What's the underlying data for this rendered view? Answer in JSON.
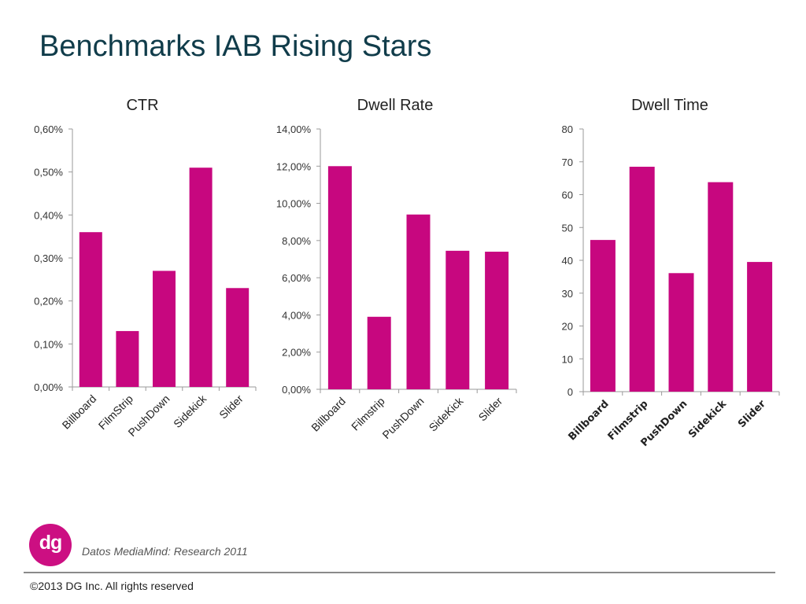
{
  "title": "Benchmarks IAB Rising Stars",
  "chart_data": [
    {
      "type": "bar",
      "title": "CTR",
      "categories": [
        "Billboard",
        "FilmStrip",
        "PushDown",
        "Sidekick",
        "Slider"
      ],
      "values": [
        0.36,
        0.13,
        0.27,
        0.51,
        0.23
      ],
      "ylim": [
        0,
        0.6
      ],
      "yticks": [
        "0,00%",
        "0,10%",
        "0,20%",
        "0,30%",
        "0,40%",
        "0,50%",
        "0,60%"
      ],
      "bar_color": "#c7077f"
    },
    {
      "type": "bar",
      "title": "Dwell Rate",
      "categories": [
        "Billboard",
        "Filmstrip",
        "PushDown",
        "SideKick",
        "Slider"
      ],
      "values": [
        12.0,
        3.9,
        9.4,
        7.45,
        7.4
      ],
      "ylim": [
        0,
        14
      ],
      "yticks": [
        "0,00%",
        "2,00%",
        "4,00%",
        "6,00%",
        "8,00%",
        "10,00%",
        "12,00%",
        "14,00%"
      ],
      "bar_color": "#c7077f"
    },
    {
      "type": "bar",
      "title": "Dwell Time",
      "categories": [
        "Billboard",
        "Filmstrip",
        "PushDown",
        "Sidekick",
        "Slider"
      ],
      "values": [
        46.2,
        68.5,
        36.1,
        63.8,
        39.5
      ],
      "ylim": [
        0,
        80
      ],
      "yticks": [
        "0",
        "10",
        "20",
        "30",
        "40",
        "50",
        "60",
        "70",
        "80"
      ],
      "bar_color": "#c7077f"
    }
  ],
  "footer": {
    "logo_text": "dg",
    "logo_color": "#cc0f82",
    "source": "Datos MediaMind: Research 2011",
    "copyright": "©2013 DG Inc. All rights reserved"
  }
}
